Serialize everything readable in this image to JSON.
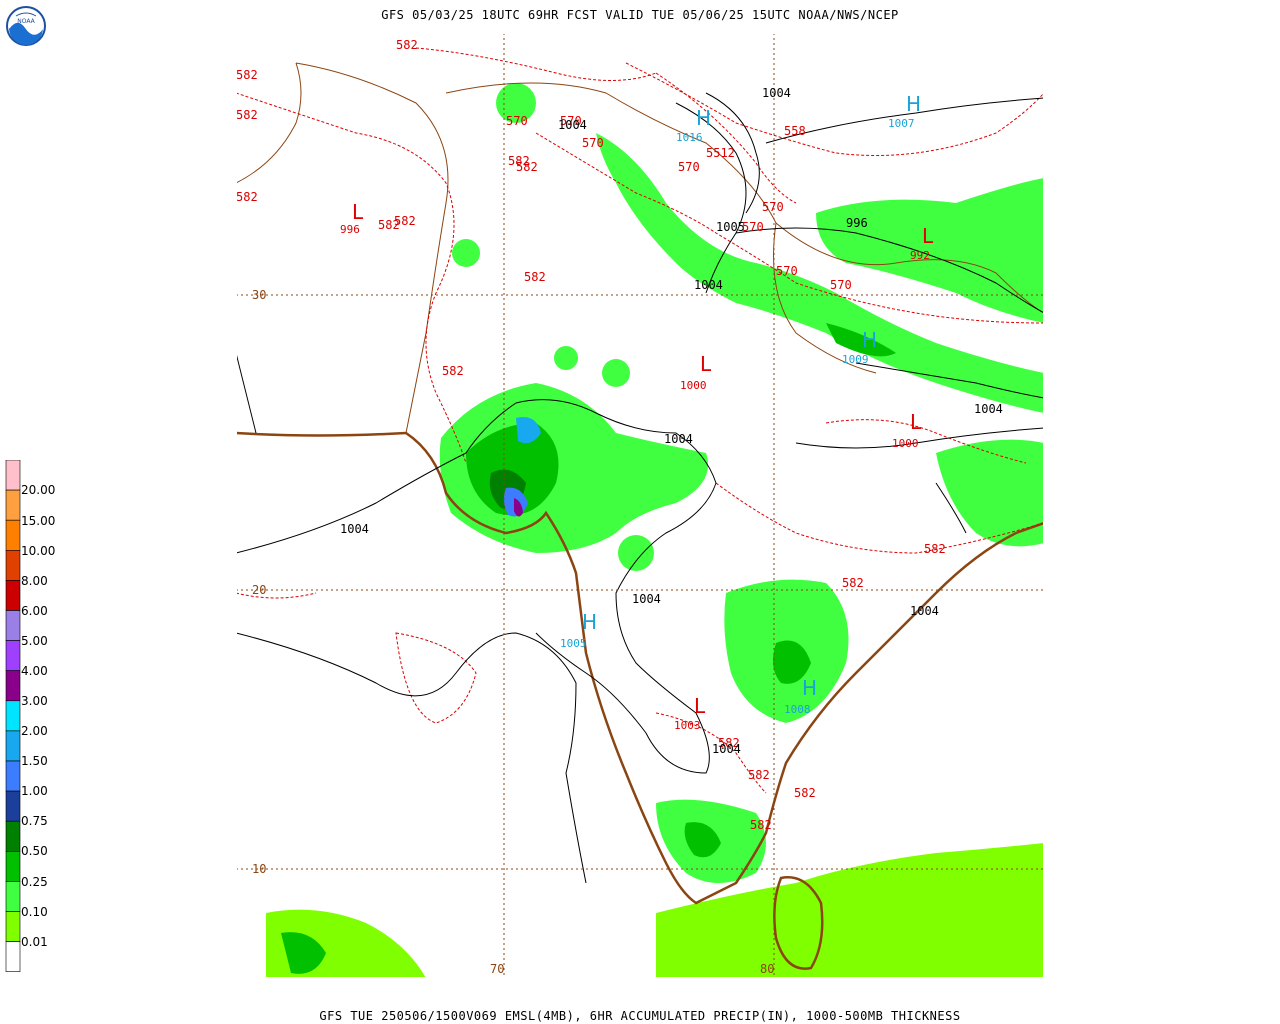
{
  "header": {
    "title": "GFS 05/03/25 18UTC 69HR FCST VALID TUE 05/06/25 15UTC NOAA/NWS/NCEP"
  },
  "footer": {
    "title": "GFS TUE 250506/1500V069 EMSL(4MB), 6HR ACCUMULATED PRECIP(IN), 1000-500MB THICKNESS"
  },
  "logo": {
    "text": "NOAA"
  },
  "legend": {
    "labels": [
      "20.00",
      "15.00",
      "10.00",
      "8.00",
      "6.00",
      "5.00",
      "4.00",
      "3.00",
      "2.00",
      "1.50",
      "1.00",
      "0.75",
      "0.50",
      "0.25",
      "0.10",
      "0.01"
    ],
    "colors": [
      "#ffc0cb",
      "#ffa040",
      "#ff8000",
      "#e04000",
      "#cc0000",
      "#9a7fe6",
      "#a040ff",
      "#8a008a",
      "#00e5ff",
      "#18a8f0",
      "#3c7cff",
      "#1b3f9a",
      "#008000",
      "#00c000",
      "#40ff40",
      "#80ff00",
      "#ffffff"
    ]
  },
  "grid": {
    "lat_labels": [
      "30",
      "20",
      "10"
    ],
    "lon_labels": [
      "70",
      "80"
    ]
  },
  "thickness_labels": [
    {
      "text": "582"
    },
    {
      "text": "582"
    },
    {
      "text": "582"
    },
    {
      "text": "582"
    },
    {
      "text": "570"
    },
    {
      "text": "570"
    },
    {
      "text": "570"
    },
    {
      "text": "570"
    },
    {
      "text": "582"
    },
    {
      "text": "582"
    },
    {
      "text": "582"
    },
    {
      "text": "570"
    },
    {
      "text": "570"
    },
    {
      "text": "570"
    },
    {
      "text": "570"
    },
    {
      "text": "558"
    },
    {
      "text": "582"
    },
    {
      "text": "582"
    },
    {
      "text": "582"
    },
    {
      "text": "582"
    },
    {
      "text": "582"
    },
    {
      "text": "582"
    },
    {
      "text": "582"
    },
    {
      "text": "582"
    },
    {
      "text": "582"
    },
    {
      "text": "5512"
    }
  ],
  "pressure_labels": [
    {
      "text": "1004"
    },
    {
      "text": "1004"
    },
    {
      "text": "1004"
    },
    {
      "text": "996"
    },
    {
      "text": "1005"
    },
    {
      "text": "1004"
    },
    {
      "text": "1004"
    },
    {
      "text": "1004"
    },
    {
      "text": "1004"
    },
    {
      "text": "1004"
    },
    {
      "text": "1004"
    }
  ],
  "centers": [
    {
      "type": "L",
      "value": "996"
    },
    {
      "type": "L",
      "value": "1000"
    },
    {
      "type": "L",
      "value": "992"
    },
    {
      "type": "L",
      "value": "1000"
    },
    {
      "type": "L",
      "value": "1003"
    },
    {
      "type": "H",
      "value": "1016"
    },
    {
      "type": "H",
      "value": "1007"
    },
    {
      "type": "H",
      "value": "1009"
    },
    {
      "type": "H",
      "value": "1005"
    },
    {
      "type": "H",
      "value": "1008"
    }
  ]
}
